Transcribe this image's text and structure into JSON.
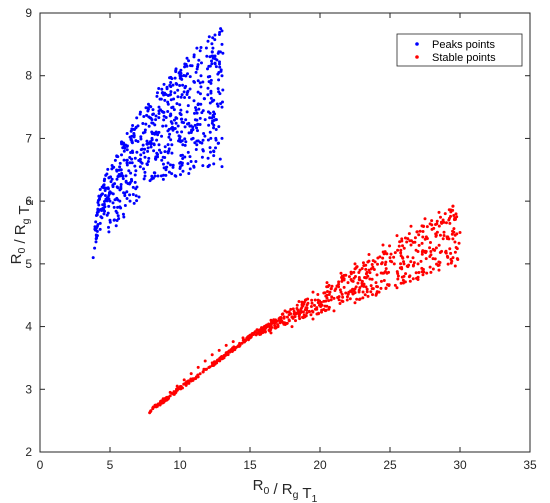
{
  "chart_data": {
    "type": "scatter",
    "title": "",
    "xlabel": {
      "parts": [
        [
          "R",
          "0"
        ],
        [
          " / R",
          "g"
        ],
        [
          " T",
          "1"
        ]
      ]
    },
    "ylabel": {
      "parts": [
        [
          "R",
          "0"
        ],
        [
          " / R",
          "g"
        ],
        [
          " T",
          "2"
        ]
      ]
    },
    "xlim": [
      0,
      35
    ],
    "ylim": [
      2,
      9
    ],
    "xticks": [
      0,
      5,
      10,
      15,
      20,
      25,
      30,
      35
    ],
    "yticks": [
      2,
      3,
      4,
      5,
      6,
      7,
      8,
      9
    ],
    "grid": false,
    "legend_position": "top-right",
    "series": [
      {
        "name": "Peaks points",
        "color": "#0000ff",
        "region": "upper-left",
        "points": [
          [
            3.8,
            5.1
          ],
          [
            3.9,
            5.25
          ],
          [
            4.0,
            5.35
          ],
          [
            4.1,
            5.45
          ],
          [
            4.3,
            5.55
          ],
          [
            4.1,
            5.6
          ],
          [
            4.4,
            5.85
          ],
          [
            4.6,
            5.95
          ],
          [
            4.8,
            6.05
          ],
          [
            5.0,
            6.15
          ],
          [
            5.2,
            6.25
          ],
          [
            5.5,
            6.35
          ],
          [
            5.8,
            6.5
          ],
          [
            6.2,
            6.65
          ],
          [
            6.6,
            6.8
          ],
          [
            7.0,
            6.95
          ],
          [
            7.5,
            7.1
          ],
          [
            8.0,
            7.3
          ],
          [
            8.5,
            7.5
          ],
          [
            9.0,
            7.7
          ],
          [
            9.5,
            7.85
          ],
          [
            10.0,
            8.0
          ],
          [
            10.5,
            8.15
          ],
          [
            11.0,
            8.3
          ],
          [
            11.5,
            8.45
          ],
          [
            12.0,
            8.55
          ],
          [
            12.5,
            8.65
          ],
          [
            12.9,
            8.75
          ],
          [
            5.0,
            6.0
          ],
          [
            5.3,
            5.9
          ],
          [
            5.7,
            6.0
          ],
          [
            6.2,
            6.15
          ],
          [
            6.8,
            6.3
          ],
          [
            7.5,
            6.4
          ],
          [
            8.2,
            6.45
          ],
          [
            9.0,
            6.5
          ],
          [
            10.0,
            6.52
          ],
          [
            11.0,
            6.54
          ],
          [
            12.0,
            6.55
          ],
          [
            13.0,
            6.55
          ],
          [
            13.0,
            7.0
          ],
          [
            13.0,
            7.5
          ],
          [
            13.0,
            8.0
          ],
          [
            13.0,
            8.5
          ],
          [
            6.0,
            6.9
          ],
          [
            7.0,
            7.2
          ],
          [
            8.0,
            7.0
          ],
          [
            9.0,
            7.2
          ],
          [
            10.0,
            7.4
          ],
          [
            11.0,
            7.6
          ],
          [
            12.0,
            7.8
          ],
          [
            12.5,
            8.2
          ],
          [
            11.5,
            8.0
          ],
          [
            10.5,
            7.7
          ],
          [
            9.5,
            7.5
          ],
          [
            8.5,
            6.9
          ],
          [
            7.5,
            6.7
          ],
          [
            12.2,
            7.0
          ],
          [
            11.2,
            6.9
          ],
          [
            10.2,
            6.9
          ],
          [
            9.2,
            6.8
          ],
          [
            12.6,
            7.3
          ],
          [
            11.8,
            7.3
          ],
          [
            10.8,
            7.2
          ],
          [
            9.8,
            7.1
          ],
          [
            8.8,
            6.7
          ],
          [
            12.4,
            6.8
          ],
          [
            11.6,
            6.7
          ]
        ]
      },
      {
        "name": "Stable points",
        "color": "#ff0000",
        "region": "lower-right",
        "points": [
          [
            7.9,
            2.65
          ],
          [
            8.3,
            2.75
          ],
          [
            8.8,
            2.85
          ],
          [
            9.3,
            2.95
          ],
          [
            9.8,
            3.05
          ],
          [
            10.3,
            3.15
          ],
          [
            10.8,
            3.25
          ],
          [
            11.3,
            3.35
          ],
          [
            11.8,
            3.45
          ],
          [
            12.3,
            3.55
          ],
          [
            12.8,
            3.62
          ],
          [
            13.3,
            3.7
          ],
          [
            13.8,
            3.76
          ],
          [
            14.5,
            3.82
          ],
          [
            15.5,
            3.95
          ],
          [
            16.5,
            4.1
          ],
          [
            17.5,
            4.25
          ],
          [
            18.5,
            4.4
          ],
          [
            19.5,
            4.55
          ],
          [
            20.5,
            4.7
          ],
          [
            21.5,
            4.85
          ],
          [
            22.5,
            5.0
          ],
          [
            23.5,
            5.15
          ],
          [
            24.5,
            5.3
          ],
          [
            25.5,
            5.45
          ],
          [
            26.5,
            5.6
          ],
          [
            27.5,
            5.72
          ],
          [
            28.5,
            5.82
          ],
          [
            29.5,
            5.92
          ],
          [
            15.0,
            3.85
          ],
          [
            16.5,
            3.9
          ],
          [
            18.0,
            4.0
          ],
          [
            19.5,
            4.12
          ],
          [
            21.0,
            4.25
          ],
          [
            22.5,
            4.38
          ],
          [
            24.0,
            4.5
          ],
          [
            25.5,
            4.62
          ],
          [
            27.0,
            4.75
          ],
          [
            28.5,
            4.9
          ],
          [
            29.5,
            5.1
          ],
          [
            30.0,
            5.5
          ],
          [
            17.0,
            4.0
          ],
          [
            18.5,
            4.2
          ],
          [
            20.0,
            4.35
          ],
          [
            21.5,
            4.55
          ],
          [
            23.0,
            4.65
          ],
          [
            24.5,
            4.85
          ],
          [
            26.0,
            5.0
          ],
          [
            27.5,
            5.2
          ],
          [
            28.8,
            5.4
          ],
          [
            29.2,
            5.7
          ],
          [
            25.0,
            5.1
          ],
          [
            22.0,
            4.7
          ],
          [
            19.0,
            4.3
          ],
          [
            26.5,
            5.3
          ],
          [
            28.0,
            5.55
          ],
          [
            23.5,
            4.9
          ],
          [
            20.5,
            4.5
          ],
          [
            27.0,
            5.0
          ],
          [
            24.0,
            4.7
          ],
          [
            21.0,
            4.45
          ],
          [
            18.0,
            4.15
          ],
          [
            16.0,
            3.95
          ],
          [
            29.0,
            5.2
          ],
          [
            26.0,
            4.8
          ]
        ]
      }
    ]
  }
}
